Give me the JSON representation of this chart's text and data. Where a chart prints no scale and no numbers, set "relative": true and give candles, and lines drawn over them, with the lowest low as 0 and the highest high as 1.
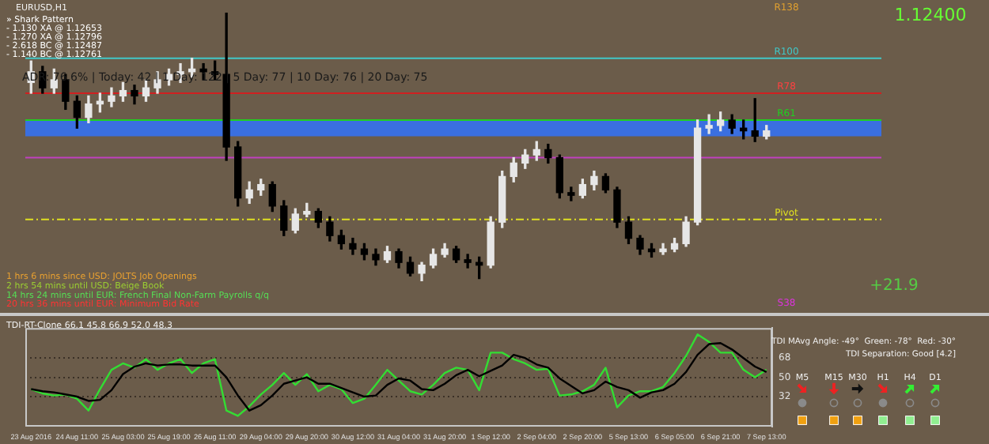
{
  "chart_data": [
    {
      "type": "candlestick",
      "title": "EURUSD,H1",
      "relative": true,
      "categories": [
        null,
        null,
        null,
        null,
        null,
        null,
        null,
        null,
        null,
        null,
        null,
        null,
        null,
        null,
        null,
        null,
        null,
        null,
        null,
        null,
        null,
        null,
        null,
        null,
        null,
        null,
        null,
        null,
        null,
        null,
        null,
        null,
        null,
        null,
        null,
        null,
        null,
        null,
        null,
        null,
        null,
        null,
        null,
        null,
        null,
        null,
        null,
        null,
        null,
        null,
        null,
        null,
        null,
        null,
        null,
        null,
        null,
        null,
        null,
        null,
        null,
        null,
        null,
        null,
        null
      ],
      "ohlc": [
        [
          0.74,
          0.82,
          0.7,
          0.78
        ],
        [
          0.78,
          0.8,
          0.7,
          0.72
        ],
        [
          0.72,
          0.79,
          0.7,
          0.75
        ],
        [
          0.75,
          0.77,
          0.64,
          0.67
        ],
        [
          0.67,
          0.69,
          0.57,
          0.61
        ],
        [
          0.61,
          0.69,
          0.59,
          0.66
        ],
        [
          0.66,
          0.7,
          0.63,
          0.67
        ],
        [
          0.67,
          0.72,
          0.65,
          0.69
        ],
        [
          0.69,
          0.74,
          0.67,
          0.71
        ],
        [
          0.71,
          0.73,
          0.66,
          0.69
        ],
        [
          0.69,
          0.75,
          0.67,
          0.72
        ],
        [
          0.72,
          0.78,
          0.7,
          0.75
        ],
        [
          0.75,
          0.79,
          0.73,
          0.77
        ],
        [
          0.77,
          0.81,
          0.74,
          0.78
        ],
        [
          0.78,
          0.83,
          0.76,
          0.79
        ],
        [
          0.79,
          0.81,
          0.75,
          0.78
        ],
        [
          0.78,
          0.82,
          0.75,
          0.77
        ],
        [
          0.77,
          1,
          0.45,
          0.5
        ],
        [
          0.5,
          0.52,
          0.28,
          0.31
        ],
        [
          0.31,
          0.37,
          0.29,
          0.34
        ],
        [
          0.34,
          0.38,
          0.32,
          0.36
        ],
        [
          0.36,
          0.37,
          0.26,
          0.28
        ],
        [
          0.28,
          0.3,
          0.17,
          0.19
        ],
        [
          0.19,
          0.27,
          0.18,
          0.25
        ],
        [
          0.25,
          0.29,
          0.24,
          0.26
        ],
        [
          0.26,
          0.27,
          0.2,
          0.22
        ],
        [
          0.22,
          0.24,
          0.15,
          0.17
        ],
        [
          0.17,
          0.19,
          0.12,
          0.14
        ],
        [
          0.14,
          0.16,
          0.1,
          0.12
        ],
        [
          0.12,
          0.14,
          0.08,
          0.1
        ],
        [
          0.1,
          0.12,
          0.06,
          0.08
        ],
        [
          0.08,
          0.13,
          0.07,
          0.11
        ],
        [
          0.11,
          0.12,
          0.05,
          0.07
        ],
        [
          0.07,
          0.09,
          0.02,
          0.03
        ],
        [
          0.03,
          0.07,
          0,
          0.06
        ],
        [
          0.06,
          0.12,
          0.05,
          0.1
        ],
        [
          0.1,
          0.14,
          0.09,
          0.12
        ],
        [
          0.12,
          0.13,
          0.07,
          0.08
        ],
        [
          0.08,
          0.1,
          0.05,
          0.07
        ],
        [
          0.07,
          0.09,
          0.01,
          0.06
        ],
        [
          0.06,
          0.24,
          0.05,
          0.22
        ],
        [
          0.22,
          0.41,
          0.2,
          0.39
        ],
        [
          0.39,
          0.46,
          0.37,
          0.44
        ],
        [
          0.44,
          0.49,
          0.42,
          0.47
        ],
        [
          0.47,
          0.52,
          0.45,
          0.49
        ],
        [
          0.49,
          0.51,
          0.44,
          0.46
        ],
        [
          0.46,
          0.47,
          0.31,
          0.33
        ],
        [
          0.33,
          0.35,
          0.3,
          0.32
        ],
        [
          0.32,
          0.38,
          0.31,
          0.36
        ],
        [
          0.36,
          0.41,
          0.34,
          0.39
        ],
        [
          0.39,
          0.4,
          0.33,
          0.34
        ],
        [
          0.34,
          0.35,
          0.2,
          0.22
        ],
        [
          0.22,
          0.24,
          0.14,
          0.16
        ],
        [
          0.16,
          0.17,
          0.1,
          0.12
        ],
        [
          0.12,
          0.14,
          0.09,
          0.11
        ],
        [
          0.11,
          0.14,
          0.1,
          0.12
        ],
        [
          0.12,
          0.16,
          0.11,
          0.14
        ],
        [
          0.14,
          0.24,
          0.13,
          0.22
        ],
        [
          0.22,
          0.6,
          0.21,
          0.57
        ],
        [
          0.57,
          0.62,
          0.55,
          0.58
        ],
        [
          0.58,
          0.63,
          0.56,
          0.6
        ],
        [
          0.6,
          0.62,
          0.55,
          0.57
        ],
        [
          0.57,
          0.6,
          0.53,
          0.56
        ],
        [
          0.56,
          0.68,
          0.52,
          0.54
        ],
        [
          0.54,
          0.58,
          0.53,
          0.56
        ]
      ],
      "ref_lines": [
        {
          "axis": "y",
          "value": 0.83,
          "label": "R100",
          "color": "#40c8c8"
        },
        {
          "axis": "y",
          "value": 0.7,
          "label": "R78",
          "color": "#d02020"
        },
        {
          "axis": "y",
          "value": 0.6,
          "label": "R61",
          "color": "#20d020"
        },
        {
          "axis": "y",
          "value": 0.46,
          "color": "#c040c0"
        },
        {
          "axis": "y",
          "value": 0.23,
          "label": "Pivot",
          "color": "#e0e020",
          "line_style": "dashed"
        }
      ],
      "bands": [
        {
          "axis": "y",
          "from": 0.54,
          "to": 0.6,
          "color": "#3a6fe0"
        }
      ],
      "annotations": [
        "» Shark Pattern",
        "- 1.130 XA @ 1.12653",
        "- 1.270 XA @ 1.12796",
        "- 2.618 BC @ 1.12487",
        "- 1.140 BC @ 1.12761",
        "ADR: 76.6% | Today: 42 | 1 Day: 122 | 5 Day: 77 | 10 Day: 76 | 20 Day: 75",
        "1 hrs 6 mins since USD: JOLTS Job Openings",
        "2 hrs 54 mins until USD: Beige Book",
        "14 hrs 24 mins until EUR: French Final Non-Farm Payrolls q/q",
        "20 hrs 36 mins until EUR: Minimum Bid Rate",
        "1.12400",
        "+21.9",
        "R138",
        "S38"
      ]
    },
    {
      "type": "line",
      "title": "TDI-RT-Clone 66.1 45.8 66.9 52.0 48.3",
      "grid": "y",
      "ylim": [
        4,
        96
      ],
      "yticks": [
        32,
        50,
        68
      ],
      "categories": [
        "23 Aug 2016",
        null,
        null,
        null,
        "24 Aug 11:00",
        null,
        null,
        null,
        "25 Aug 03:00",
        null,
        null,
        null,
        "25 Aug 19:00",
        null,
        null,
        null,
        "26 Aug 11:00",
        null,
        null,
        null,
        "29 Aug 04:00",
        null,
        null,
        null,
        "29 Aug 20:00",
        null,
        null,
        null,
        "30 Aug 12:00",
        null,
        null,
        null,
        "31 Aug 04:00",
        null,
        null,
        null,
        "31 Aug 20:00",
        null,
        null,
        null,
        "1 Sep 12:00",
        null,
        null,
        null,
        "2 Sep 04:00",
        null,
        null,
        null,
        "2 Sep 20:00",
        null,
        null,
        null,
        "5 Sep 13:00",
        null,
        null,
        null,
        "6 Sep 05:00",
        null,
        null,
        null,
        "6 Sep 21:00",
        null,
        null,
        null,
        "7 Sep 13:00"
      ],
      "series": [
        {
          "color": "#000000",
          "values": [
            39,
            37,
            36,
            34,
            32,
            28,
            29,
            38,
            53,
            60,
            63,
            61,
            62,
            62,
            61,
            61,
            61,
            50,
            33,
            19,
            24,
            33,
            44,
            47,
            50,
            44,
            44,
            40,
            36,
            32,
            33,
            43,
            49,
            47,
            39,
            38,
            44,
            52,
            57,
            51,
            56,
            61,
            71,
            68,
            62,
            59,
            49,
            42,
            35,
            38,
            46,
            41,
            38,
            31,
            36,
            38,
            44,
            55,
            71,
            81,
            82,
            76,
            68,
            60,
            55
          ]
        },
        {
          "color": "#33dd33",
          "values": [
            39,
            35,
            33,
            34,
            30,
            19,
            39,
            57,
            63,
            59,
            67,
            57,
            63,
            67,
            54,
            63,
            67,
            19,
            14,
            23,
            34,
            43,
            54,
            43,
            53,
            37,
            43,
            39,
            26,
            30,
            43,
            57,
            47,
            37,
            34,
            43,
            54,
            59,
            57,
            38,
            73,
            73,
            67,
            63,
            57,
            58,
            33,
            34,
            37,
            43,
            59,
            22,
            33,
            37,
            37,
            41,
            54,
            70,
            90,
            83,
            73,
            73,
            57,
            50,
            57
          ]
        }
      ],
      "annotations": [
        "TDI MAvg Angle: -49°  Green: -78°  Red: -30°",
        "TDI Separation: Good [4.2]",
        "M5",
        "M15",
        "M30",
        "H1",
        "H4",
        "D1"
      ]
    }
  ]
}
